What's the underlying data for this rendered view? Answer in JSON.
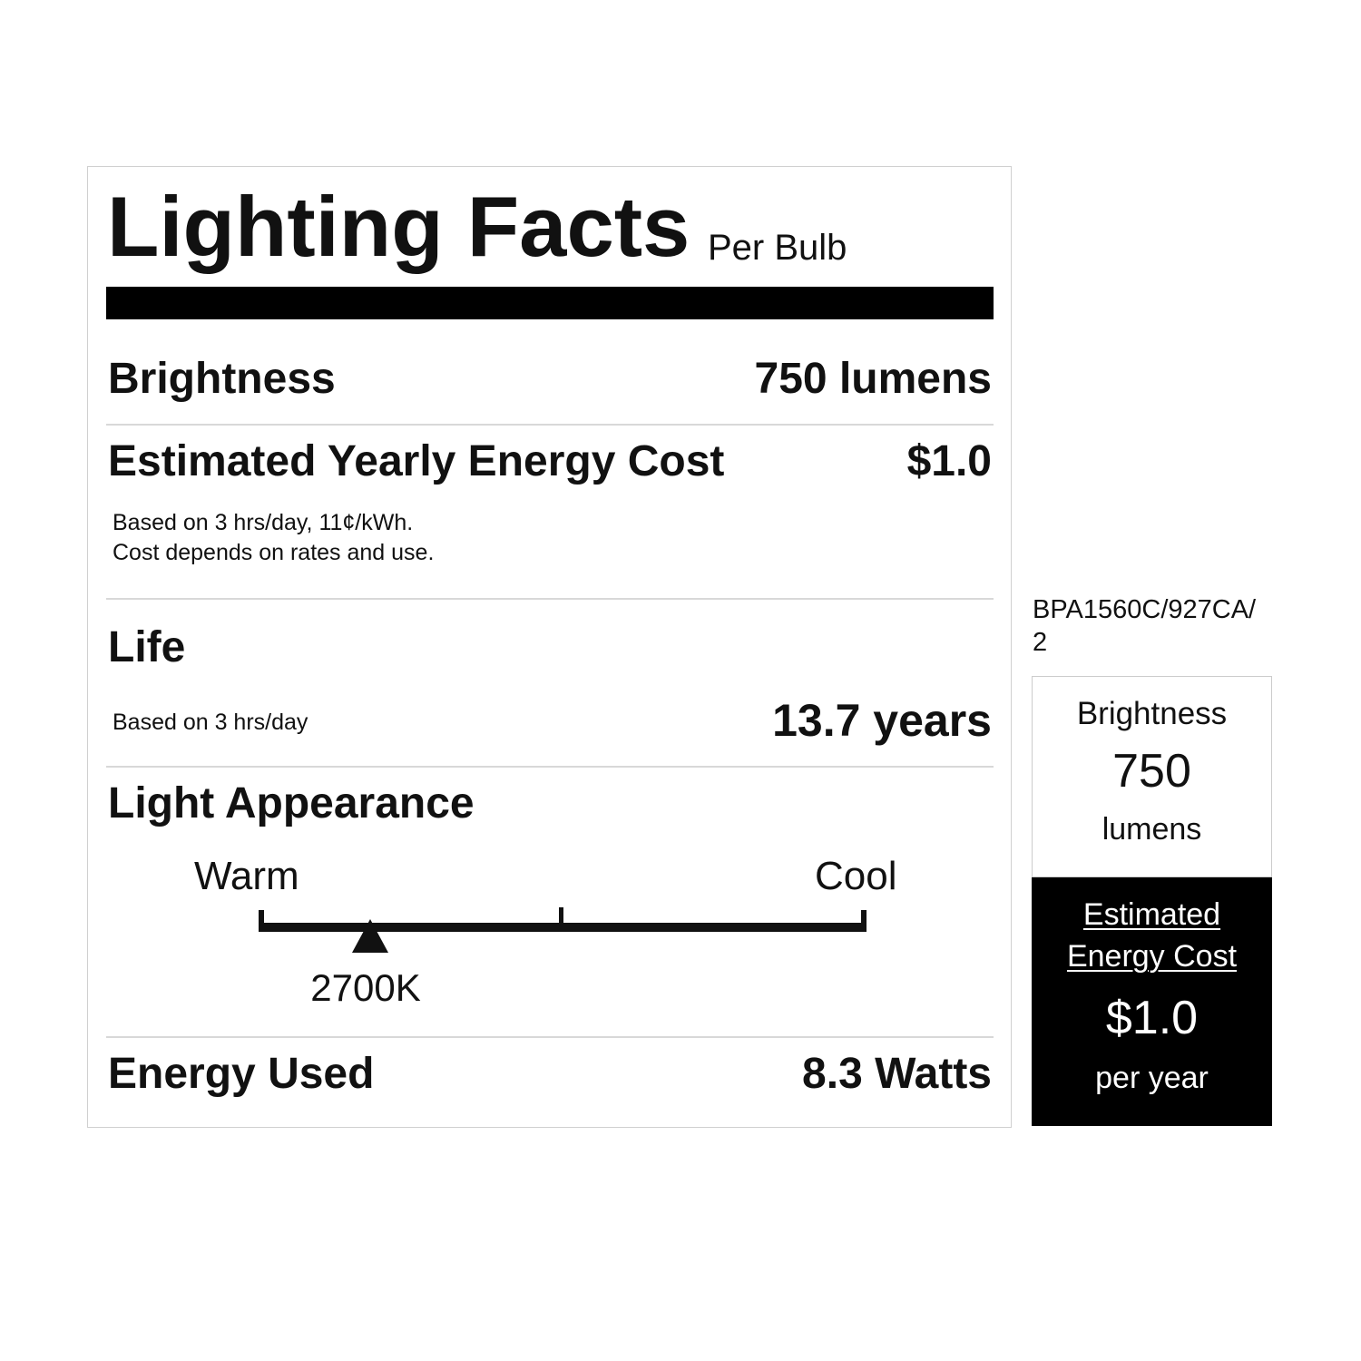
{
  "label": {
    "title": "Lighting Facts",
    "subtitle": "Per Bulb",
    "brightness": {
      "label": "Brightness",
      "value": "750 lumens"
    },
    "energy_cost": {
      "label": "Estimated Yearly Energy Cost",
      "value": "$1.0",
      "note_line1": "Based on 3 hrs/day, 11¢/kWh.",
      "note_line2": "Cost depends on rates and use."
    },
    "life": {
      "label": "Life",
      "note": "Based on 3 hrs/day",
      "value": "13.7 years"
    },
    "light_appearance": {
      "label": "Light Appearance",
      "warm_label": "Warm",
      "cool_label": "Cool",
      "value": "2700K",
      "scale_position_fraction": 0.18
    },
    "energy_used": {
      "label": "Energy Used",
      "value": "8.3 Watts"
    }
  },
  "side": {
    "model_line1": "BPA1560C/927CA/",
    "model_line2": "2",
    "brightness_label": "Brightness",
    "brightness_value": "750",
    "brightness_unit": "lumens",
    "cost_label_line1": "Estimated",
    "cost_label_line2": "Energy Cost",
    "cost_value": "$1.0",
    "cost_unit": "per year"
  }
}
